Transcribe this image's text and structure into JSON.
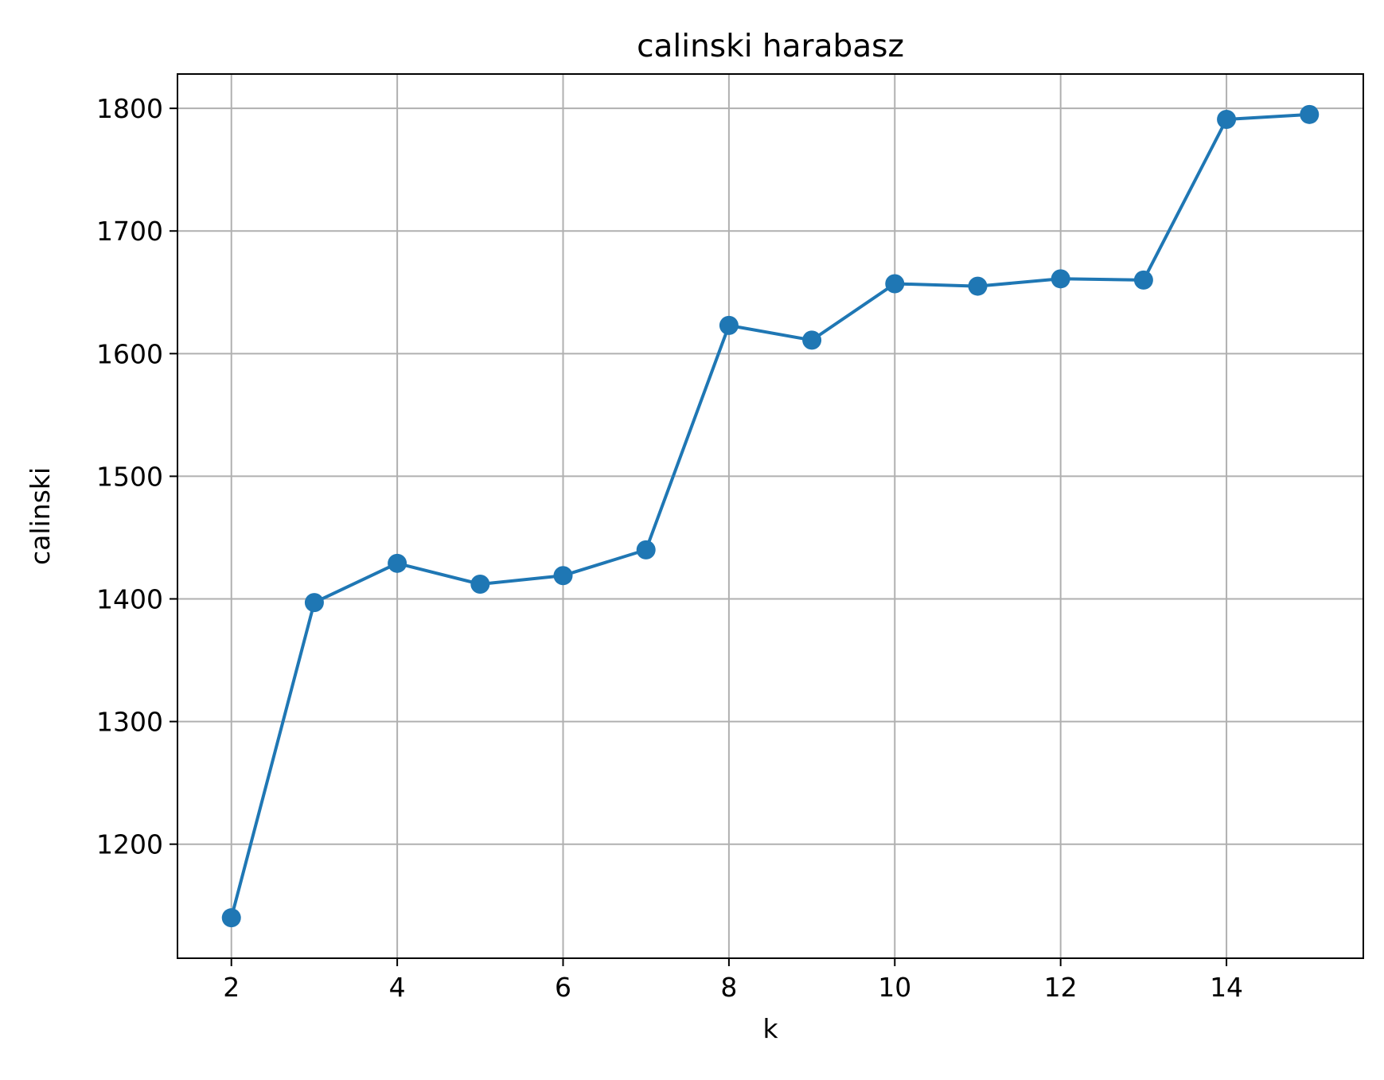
{
  "chart_data": {
    "type": "line",
    "title": "calinski harabasz",
    "xlabel": "k",
    "ylabel": "calinski",
    "x": [
      2,
      3,
      4,
      5,
      6,
      7,
      8,
      9,
      10,
      11,
      12,
      13,
      14,
      15
    ],
    "series": [
      {
        "values": [
          1140,
          1397,
          1429,
          1412,
          1419,
          1440,
          1623,
          1611,
          1657,
          1655,
          1661,
          1660,
          1791,
          1795
        ],
        "color": "#1f77b4",
        "marker": "circle"
      }
    ],
    "xlim": [
      1.35,
      15.65
    ],
    "ylim": [
      1107,
      1828
    ],
    "xticks": [
      2,
      4,
      6,
      8,
      10,
      12,
      14
    ],
    "yticks": [
      1200,
      1300,
      1400,
      1500,
      1600,
      1700,
      1800
    ],
    "grid": true,
    "legend": false
  }
}
